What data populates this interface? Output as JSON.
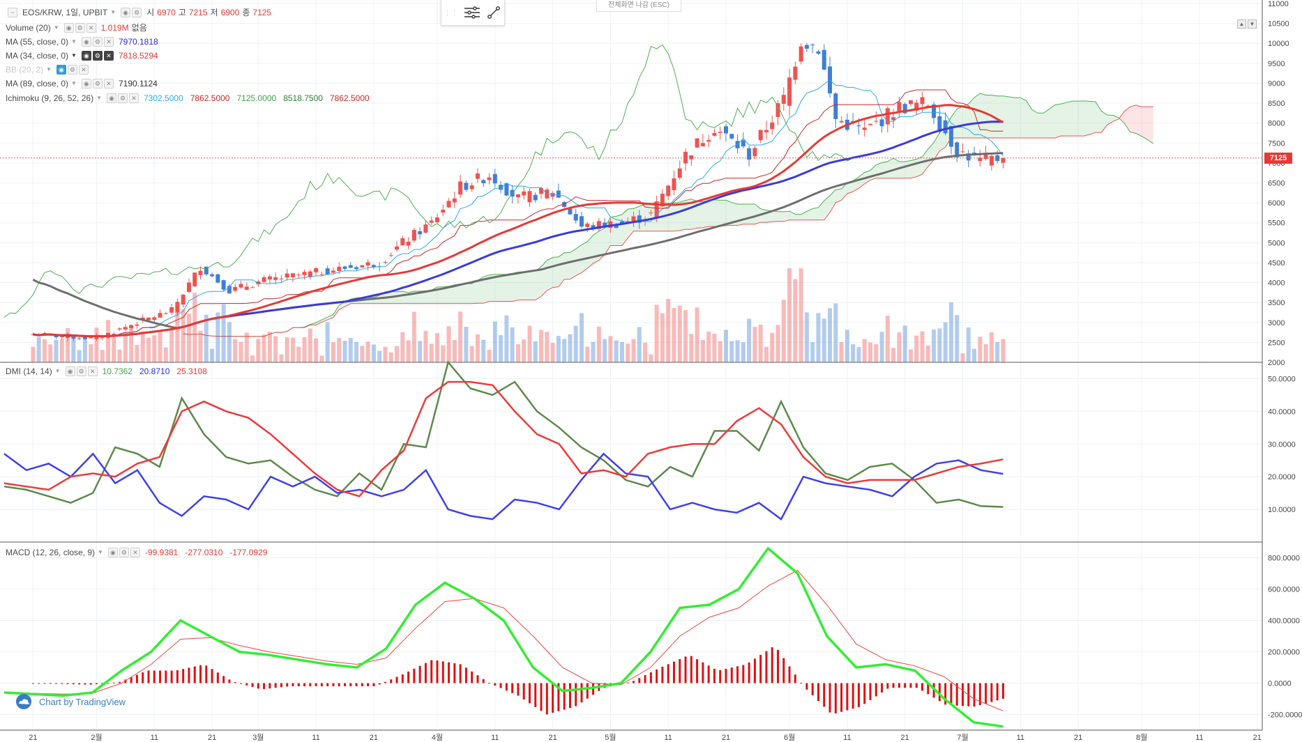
{
  "header": {
    "symbol_label": "EOS/KRW, 1일, UPBIT",
    "o_key": "시",
    "o_val": "6970",
    "h_key": "고",
    "h_val": "7215",
    "l_key": "저",
    "l_val": "6900",
    "c_key": "종",
    "c_val": "7125",
    "fullscreen_exit": "전체화면 나감 (ESC)"
  },
  "indicators": {
    "volume": {
      "label": "Volume (20)",
      "v1": "1.019M",
      "v2": "없음"
    },
    "ma55": {
      "label": "MA (55, close, 0)",
      "value": "7970.1818"
    },
    "ma34": {
      "label": "MA (34, close, 0)",
      "value": "7818.5294"
    },
    "bb": {
      "label": "BB (20, 2)"
    },
    "ma89": {
      "label": "MA (89, close, 0)",
      "value": "7190.1124"
    },
    "ichimoku": {
      "label": "Ichimoku (9, 26, 52, 26)",
      "v1": "7302.5000",
      "v2": "7862.5000",
      "v3": "7125.0000",
      "v4": "8518.7500",
      "v5": "7862.5000"
    },
    "dmi": {
      "label": "DMI (14, 14)",
      "v1": "10.7362",
      "v2": "20.8710",
      "v3": "25.3108"
    },
    "macd": {
      "label": "MACD (12, 26, close, 9)",
      "v1": "-99.9381",
      "v2": "-277.0310",
      "v3": "-177.0929"
    }
  },
  "last_price_tag": "7125",
  "logo_text": "Chart by TradingView",
  "colors": {
    "up": "#ef5350",
    "down": "#3f7fd6",
    "ma55": "#3b3bdc",
    "ma34": "#e53935",
    "ma89": "#6e6e6e",
    "tenkan": "#29a8ee",
    "kijun": "#c62828",
    "chikou": "#4caf50",
    "cloud_bull": "#4caf50",
    "cloud_bear": "#ef5350",
    "dmi_adx": "#5c8a4a",
    "dmi_plus": "#3f3ff0",
    "dmi_minus": "#ee3a3a",
    "macd_line": "#33ee33",
    "macd_signal": "#ee4444",
    "macd_hist": "#dd1111"
  },
  "chart_data": [
    {
      "type": "candlestick",
      "title": "EOS/KRW, 1일, UPBIT",
      "ylim": [
        2000,
        11000
      ],
      "y_ticks": [
        "2000",
        "2500",
        "3000",
        "3500",
        "4000",
        "4500",
        "5000",
        "5500",
        "6000",
        "6500",
        "7000",
        "7500",
        "8000",
        "8500",
        "9000",
        "9500",
        "10000",
        "10500",
        "11000"
      ],
      "x_tick_labels": [
        "21",
        "2월",
        "11",
        "21",
        "3월",
        "11",
        "21",
        "4월",
        "11",
        "21",
        "5월",
        "11",
        "21",
        "6월",
        "11",
        "21",
        "7월",
        "11",
        "21",
        "8월",
        "11",
        "21"
      ],
      "price_anchors": [
        {
          "date": "01-21",
          "close": 2700
        },
        {
          "date": "02-01",
          "close": 2600
        },
        {
          "date": "02-08",
          "close": 3000
        },
        {
          "date": "02-14",
          "close": 3300
        },
        {
          "date": "02-19",
          "close": 4400
        },
        {
          "date": "02-24",
          "close": 3800
        },
        {
          "date": "03-02",
          "close": 4050
        },
        {
          "date": "03-13",
          "close": 4300
        },
        {
          "date": "03-22",
          "close": 4500
        },
        {
          "date": "03-26",
          "close": 5000
        },
        {
          "date": "03-31",
          "close": 5500
        },
        {
          "date": "04-05",
          "close": 6400
        },
        {
          "date": "04-10",
          "close": 6700
        },
        {
          "date": "04-15",
          "close": 6100
        },
        {
          "date": "04-21",
          "close": 6300
        },
        {
          "date": "04-26",
          "close": 5400
        },
        {
          "date": "05-03",
          "close": 5500
        },
        {
          "date": "05-08",
          "close": 5700
        },
        {
          "date": "05-14",
          "close": 7200
        },
        {
          "date": "05-19",
          "close": 7900
        },
        {
          "date": "05-25",
          "close": 7200
        },
        {
          "date": "05-31",
          "close": 8600
        },
        {
          "date": "06-03",
          "close": 10100
        },
        {
          "date": "06-06",
          "close": 9900
        },
        {
          "date": "06-09",
          "close": 8100
        },
        {
          "date": "06-14",
          "close": 7800
        },
        {
          "date": "06-20",
          "close": 8400
        },
        {
          "date": "06-25",
          "close": 8500
        },
        {
          "date": "06-30",
          "close": 7300
        },
        {
          "date": "07-04",
          "close": 7050
        },
        {
          "date": "07-08",
          "close": 7125
        }
      ],
      "last_close": 7125,
      "ma55_last": 7970.1818,
      "ma34_last": 7818.5294,
      "ma89_last": 7190.1124
    },
    {
      "type": "line",
      "title": "DMI (14, 14)",
      "ylim": [
        0,
        55
      ],
      "y_ticks": [
        "10.0000",
        "20.0000",
        "30.0000",
        "40.0000",
        "50.0000"
      ],
      "series": [
        {
          "name": "ADX",
          "values": [
            17,
            16,
            14,
            12,
            15,
            29,
            27,
            23,
            44,
            33,
            26,
            24,
            25,
            20,
            16,
            14,
            21,
            16,
            30,
            29,
            55,
            47,
            45,
            49,
            40,
            35,
            29,
            25,
            19,
            17,
            23,
            20,
            34,
            34,
            28,
            43,
            29,
            21,
            19,
            23,
            24,
            19,
            12,
            13,
            11,
            10.7362
          ]
        },
        {
          "name": "+DI",
          "values": [
            27,
            22,
            24,
            20,
            27,
            18,
            22,
            12,
            8,
            14,
            13,
            10,
            20,
            17,
            20,
            15,
            16,
            14,
            16,
            22,
            10,
            8,
            7,
            13,
            12,
            10,
            19,
            27,
            21,
            20,
            10,
            12,
            10,
            9,
            12,
            7,
            20,
            18,
            17,
            16,
            14,
            20,
            24,
            25,
            22,
            20.871
          ]
        },
        {
          "name": "-DI",
          "values": [
            18,
            17,
            16,
            20,
            21,
            20,
            24,
            26,
            40,
            43,
            40,
            38,
            33,
            27,
            21,
            16,
            14,
            22,
            28,
            44,
            49,
            49,
            48,
            40,
            33,
            30,
            21,
            22,
            20,
            27,
            29,
            30,
            30,
            37,
            41,
            36,
            26,
            20,
            18,
            19,
            19,
            19,
            21,
            23,
            24,
            25.3108
          ]
        }
      ]
    },
    {
      "type": "line",
      "title": "MACD (12, 26, close, 9)",
      "ylim": [
        -300,
        900
      ],
      "y_ticks": [
        "-200.0000",
        "0.0000",
        "200.0000",
        "400.0000",
        "600.0000",
        "800.0000"
      ],
      "series": [
        {
          "name": "MACD",
          "values": [
            -60,
            -70,
            -80,
            -60,
            80,
            200,
            400,
            300,
            200,
            180,
            150,
            120,
            100,
            220,
            500,
            640,
            540,
            400,
            100,
            -50,
            -30,
            0,
            200,
            480,
            500,
            600,
            860,
            700,
            300,
            100,
            120,
            80,
            -100,
            -250,
            -277.031
          ]
        },
        {
          "name": "Signal",
          "values": [
            -60,
            -65,
            -70,
            -65,
            0,
            120,
            280,
            290,
            240,
            200,
            170,
            140,
            120,
            160,
            350,
            520,
            540,
            480,
            300,
            100,
            0,
            -10,
            100,
            300,
            420,
            480,
            620,
            720,
            500,
            250,
            150,
            110,
            40,
            -100,
            -177.0929
          ]
        },
        {
          "name": "Histogram",
          "values": [
            0,
            -5,
            -10,
            5,
            80,
            80,
            120,
            10,
            -40,
            -20,
            -20,
            -20,
            -20,
            60,
            150,
            120,
            0,
            -80,
            -200,
            -150,
            -30,
            10,
            100,
            180,
            80,
            120,
            240,
            -20,
            -200,
            -150,
            -30,
            -30,
            -140,
            -150,
            -99.9381
          ]
        }
      ]
    }
  ]
}
